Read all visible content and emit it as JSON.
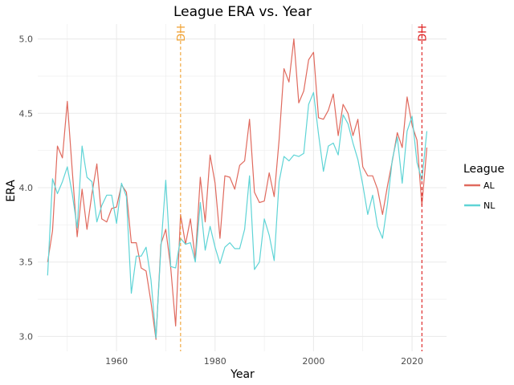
{
  "colors": {
    "AL": "#e06a5e",
    "NL": "#5fd4d6",
    "dh_al": "#f0a030",
    "dh_nl": "#dd1a1a",
    "grid": "#ebebeb"
  },
  "chart_data": {
    "type": "line",
    "title": "League ERA vs. Year",
    "xlabel": "Year",
    "ylabel": "ERA",
    "xlim": [
      1944,
      2027
    ],
    "ylim": [
      2.9,
      5.1
    ],
    "xticks": [
      1960,
      1980,
      2000,
      2020
    ],
    "yticks": [
      3.0,
      3.5,
      4.0,
      4.5,
      5.0
    ],
    "ytick_labels": [
      "3.0",
      "3.5",
      "4.0",
      "4.5",
      "5.0"
    ],
    "grid": true,
    "legend": {
      "title": "League",
      "position": "right"
    },
    "annotations": [
      {
        "label": "DH",
        "x": 1973,
        "color_key": "dh_al"
      },
      {
        "label": "DH",
        "x": 2022,
        "color_key": "dh_nl"
      }
    ],
    "series": [
      {
        "name": "AL",
        "color_key": "AL",
        "x": [
          1946,
          1947,
          1948,
          1949,
          1950,
          1951,
          1952,
          1953,
          1954,
          1955,
          1956,
          1957,
          1958,
          1959,
          1960,
          1961,
          1962,
          1963,
          1964,
          1965,
          1966,
          1967,
          1968,
          1969,
          1970,
          1971,
          1972,
          1973,
          1974,
          1975,
          1976,
          1977,
          1978,
          1979,
          1980,
          1981,
          1982,
          1983,
          1984,
          1985,
          1986,
          1987,
          1988,
          1989,
          1990,
          1991,
          1992,
          1993,
          1994,
          1995,
          1996,
          1997,
          1998,
          1999,
          2000,
          2001,
          2002,
          2003,
          2004,
          2005,
          2006,
          2007,
          2008,
          2009,
          2010,
          2011,
          2012,
          2013,
          2014,
          2015,
          2016,
          2017,
          2018,
          2019,
          2020,
          2021,
          2022,
          2023
        ],
        "y": [
          3.5,
          3.71,
          4.28,
          4.2,
          4.58,
          4.12,
          3.67,
          3.99,
          3.72,
          3.96,
          4.16,
          3.79,
          3.77,
          3.86,
          3.87,
          4.02,
          3.97,
          3.63,
          3.63,
          3.46,
          3.44,
          3.23,
          2.98,
          3.62,
          3.72,
          3.46,
          3.07,
          3.82,
          3.62,
          3.79,
          3.52,
          4.07,
          3.77,
          4.22,
          4.03,
          3.66,
          4.08,
          4.07,
          3.99,
          4.15,
          4.18,
          4.46,
          3.97,
          3.9,
          3.91,
          4.1,
          3.94,
          4.32,
          4.8,
          4.71,
          5.0,
          4.57,
          4.65,
          4.86,
          4.91,
          4.47,
          4.46,
          4.52,
          4.63,
          4.35,
          4.56,
          4.5,
          4.35,
          4.46,
          4.14,
          4.08,
          4.08,
          3.99,
          3.82,
          4.01,
          4.18,
          4.37,
          4.27,
          4.61,
          4.42,
          4.32,
          3.88,
          4.27
        ]
      },
      {
        "name": "NL",
        "color_key": "NL",
        "x": [
          1946,
          1947,
          1948,
          1949,
          1950,
          1951,
          1952,
          1953,
          1954,
          1955,
          1956,
          1957,
          1958,
          1959,
          1960,
          1961,
          1962,
          1963,
          1964,
          1965,
          1966,
          1967,
          1968,
          1969,
          1970,
          1971,
          1972,
          1973,
          1974,
          1975,
          1976,
          1977,
          1978,
          1979,
          1980,
          1981,
          1982,
          1983,
          1984,
          1985,
          1986,
          1987,
          1988,
          1989,
          1990,
          1991,
          1992,
          1993,
          1994,
          1995,
          1996,
          1997,
          1998,
          1999,
          2000,
          2001,
          2002,
          2003,
          2004,
          2005,
          2006,
          2007,
          2008,
          2009,
          2010,
          2011,
          2012,
          2013,
          2014,
          2015,
          2016,
          2017,
          2018,
          2019,
          2020,
          2021,
          2022,
          2023
        ],
        "y": [
          3.41,
          4.06,
          3.96,
          4.04,
          4.14,
          3.96,
          3.73,
          4.28,
          4.07,
          4.04,
          3.77,
          3.88,
          3.95,
          3.95,
          3.76,
          4.03,
          3.94,
          3.29,
          3.54,
          3.54,
          3.6,
          3.38,
          2.99,
          3.59,
          4.05,
          3.47,
          3.46,
          3.66,
          3.62,
          3.63,
          3.5,
          3.9,
          3.58,
          3.74,
          3.6,
          3.49,
          3.6,
          3.63,
          3.59,
          3.59,
          3.72,
          4.08,
          3.45,
          3.5,
          3.79,
          3.68,
          3.51,
          4.04,
          4.21,
          4.18,
          4.22,
          4.21,
          4.23,
          4.56,
          4.64,
          4.36,
          4.11,
          4.28,
          4.3,
          4.22,
          4.49,
          4.43,
          4.3,
          4.19,
          4.02,
          3.82,
          3.95,
          3.74,
          3.66,
          3.89,
          4.19,
          4.34,
          4.03,
          4.38,
          4.48,
          4.17,
          4.05,
          4.38
        ]
      }
    ]
  }
}
